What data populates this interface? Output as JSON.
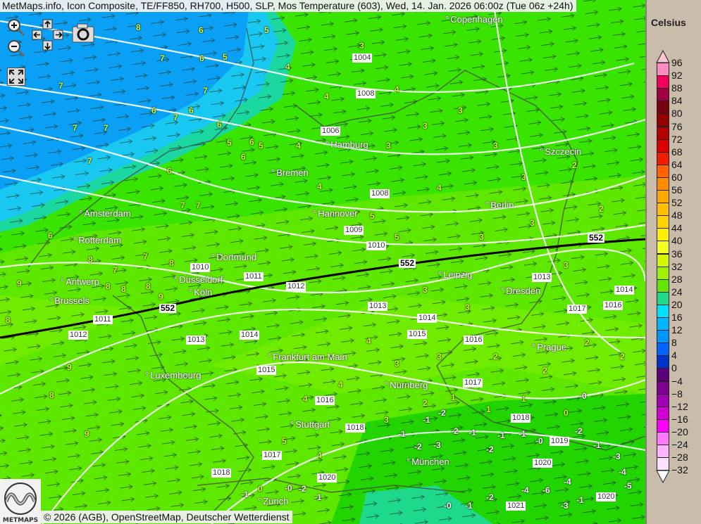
{
  "title": "MetMaps.info, Icon Composite, TE/FF850, RH700, H500, SLP, Mos Temperature (603), Wed, 14. Jan. 2026 06:00z (Tue 06z +24h)",
  "controls": {
    "zoom_in": "zoom-in-icon",
    "zoom_out": "zoom-out-icon",
    "pan": [
      "arrow-up-icon",
      "arrow-left-icon",
      "arrow-right-icon",
      "arrow-down-icon"
    ],
    "snapshot": "camera-icon",
    "fullscreen": "fullscreen-icon"
  },
  "credit": "© 2026 (AGB), OpenStreetMap, Deutscher Wetterdienst",
  "logo_text": "METMAPS",
  "legend": {
    "unit": "Celsius",
    "labels": [
      "96",
      "92",
      "88",
      "84",
      "80",
      "76",
      "72",
      "68",
      "64",
      "60",
      "56",
      "52",
      "48",
      "44",
      "40",
      "36",
      "32",
      "28",
      "24",
      "20",
      "16",
      "12",
      "8",
      "4",
      "0",
      "−4",
      "−8",
      "−12",
      "−16",
      "−20",
      "−24",
      "−28",
      "−32"
    ],
    "colors": [
      "#ff8cc0",
      "#f0005a",
      "#a00040",
      "#780010",
      "#960000",
      "#b40000",
      "#dc0000",
      "#f01e00",
      "#ff6400",
      "#ff8c00",
      "#ffa800",
      "#ffbe00",
      "#ffd200",
      "#ffee00",
      "#f4ff20",
      "#d4f500",
      "#a0f000",
      "#64e600",
      "#1ed88c",
      "#00e0ff",
      "#00b4ff",
      "#0096ff",
      "#0064ff",
      "#0032c8",
      "#5a0078",
      "#800090",
      "#a000b4",
      "#d000d0",
      "#ff00ff",
      "#ff78ff",
      "#ffb4ff",
      "#ffe0ff"
    ],
    "top_arrow_color": "#f9c4d2",
    "bottom_arrow_color": "#ffffff"
  },
  "map": {
    "colors": {
      "cold_blue": "#0aa0f5",
      "cyan": "#18c8f0",
      "teal": "#1ed88c",
      "green": "#38e400",
      "light_green": "#7aee00",
      "isoline": "#ffffff",
      "h500": "#000000"
    },
    "cities": [
      "Copenhagen",
      "Hamburg",
      "Szczecin",
      "Bremen",
      "Amsterdam",
      "Hannover",
      "Berlin",
      "Rotterdam",
      "Dortmund",
      "Leipzig",
      "Antwerp",
      "Düsseldorf",
      "Dresden",
      "Köln",
      "Brussels",
      "Frankfurt am Main",
      "Prague",
      "Luxembourg",
      "Nürnberg",
      "Stuttgart",
      "München",
      "Zürich"
    ],
    "pressure_labels": [
      "1004",
      "1008",
      "1006",
      "1008",
      "1009",
      "1010",
      "1010",
      "1011",
      "1012",
      "1013",
      "1014",
      "1015",
      "1016",
      "1017",
      "1013",
      "1014",
      "1015",
      "1016",
      "1018",
      "1018",
      "1019",
      "1020",
      "1021",
      "1020",
      "1020",
      "1013",
      "1014",
      "1017",
      "1016",
      "1012",
      "1011",
      "1017",
      "1018"
    ],
    "h500_labels": [
      "552",
      "552",
      "552"
    ],
    "temperatures": [
      "8",
      "6",
      "7",
      "6",
      "5",
      "7",
      "7",
      "7",
      "6",
      "7",
      "6",
      "7",
      "6",
      "5",
      "6",
      "6",
      "5",
      "7",
      "6",
      "7",
      "7",
      "6",
      "8",
      "7",
      "7",
      "8",
      "8",
      "8",
      "9",
      "8",
      "9",
      "8",
      "9",
      "8",
      "9",
      "5",
      "4",
      "4",
      "3",
      "4",
      "3",
      "3",
      "3",
      "3",
      "2",
      "3",
      "4",
      "4",
      "5",
      "5",
      "4",
      "3",
      "3",
      "3",
      "2",
      "3",
      "3",
      "4",
      "4",
      "3",
      "4",
      "5",
      "4",
      "3",
      "2",
      "2",
      "2",
      "2",
      "3",
      "2",
      "1",
      "1",
      "1",
      "0",
      "-0",
      "-1",
      "-2",
      "-1",
      "-2",
      "-3",
      "-2",
      "-1",
      "-2",
      "-1",
      "-1",
      "-0",
      "-2",
      "-1",
      "-3",
      "-4",
      "-5",
      "-4",
      "-6",
      "-4",
      "-3",
      "-1",
      "-2",
      "-1",
      "-0",
      "-0",
      "-2",
      "-1",
      "0",
      "-1"
    ]
  }
}
